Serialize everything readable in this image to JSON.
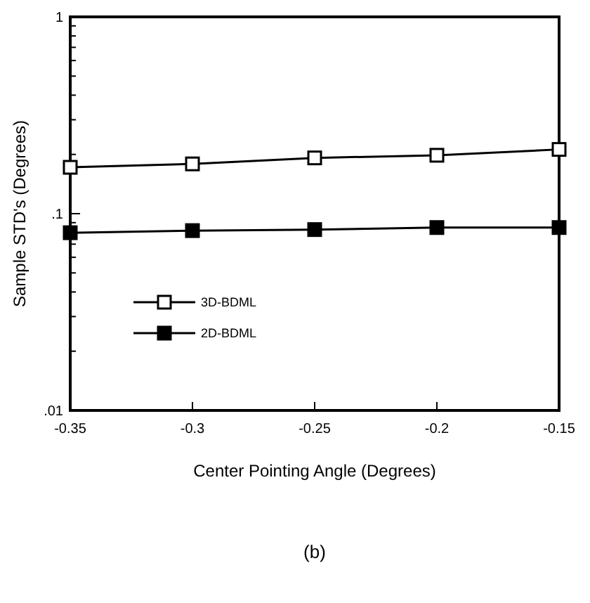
{
  "chart_data": {
    "type": "line",
    "xlabel": "Center Pointing Angle (Degrees)",
    "ylabel": "Sample STD's (Degrees)",
    "x": [
      -0.35,
      -0.3,
      -0.25,
      -0.2,
      -0.15
    ],
    "series": [
      {
        "name": "3D-BDML",
        "color": "#000000",
        "values": [
          0.172,
          0.179,
          0.192,
          0.198,
          0.212
        ],
        "marker": "square"
      },
      {
        "name": "2D-BDML",
        "color": "#000000",
        "values": [
          0.08,
          0.082,
          0.083,
          0.085,
          0.085
        ],
        "marker": "square"
      }
    ],
    "xlim": [
      -0.35,
      -0.15
    ],
    "xticks": [
      -0.35,
      -0.3,
      -0.25,
      -0.2,
      -0.15
    ],
    "ylim": [
      0.01,
      1
    ],
    "yticks": [
      {
        "value": 0.01,
        "label": ".01"
      },
      {
        "value": 0.02,
        "label": null
      },
      {
        "value": 0.03,
        "label": null
      },
      {
        "value": 0.04,
        "label": null
      },
      {
        "value": 0.05,
        "label": null
      },
      {
        "value": 0.06,
        "label": null
      },
      {
        "value": 0.07,
        "label": null
      },
      {
        "value": 0.08,
        "label": null
      },
      {
        "value": 0.09,
        "label": null
      },
      {
        "value": 0.1,
        "label": ".1"
      },
      {
        "value": 0.2,
        "label": null
      },
      {
        "value": 0.3,
        "label": null
      },
      {
        "value": 0.4,
        "label": null
      },
      {
        "value": 0.5,
        "label": null
      },
      {
        "value": 0.6,
        "label": null
      },
      {
        "value": 0.7,
        "label": null
      },
      {
        "value": 0.8,
        "label": null
      },
      {
        "value": 0.9,
        "label": null
      },
      {
        "value": 1,
        "label": "1"
      }
    ],
    "log": true,
    "grid": false,
    "legend": "left",
    "line_style": "solid",
    "annotations": [
      "(b)"
    ]
  }
}
